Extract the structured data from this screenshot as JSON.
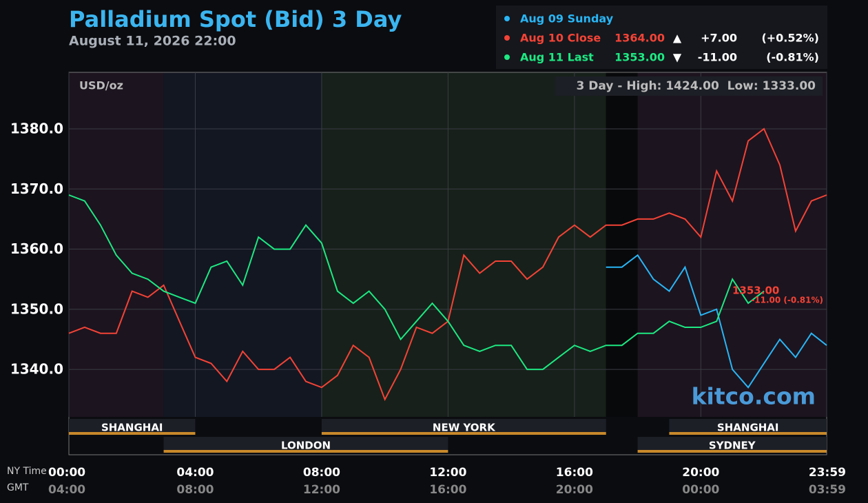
{
  "chart_data": {
    "type": "line",
    "title": "Palladium Spot (Bid) 3 Day",
    "subtitle": "August 11, 2026 22:00",
    "unit_label": "USD/oz",
    "range_note": "3 Day - High: 1424.00  Low: 1333.00",
    "watermark": "kitco.com",
    "last_price": "1353.00",
    "last_change": "-11.00 (-0.81%)",
    "x_label": "NY Time",
    "x2_label": "GMT",
    "x": [
      0,
      0.5,
      1,
      1.5,
      2,
      2.5,
      3,
      3.5,
      4,
      4.5,
      5,
      5.5,
      6,
      6.5,
      7,
      7.5,
      8,
      8.5,
      9,
      9.5,
      10,
      10.5,
      11,
      11.5,
      12,
      12.5,
      13,
      13.5,
      14,
      14.5,
      15,
      15.5,
      16,
      16.5,
      17,
      17.5,
      18,
      18.5,
      19,
      19.5,
      20,
      20.5,
      21,
      21.5,
      22,
      22.5,
      23,
      23.5,
      23.983
    ],
    "xlim": [
      0,
      23.983
    ],
    "xticks": [
      {
        "value": 0,
        "label": "00:00"
      },
      {
        "value": 4,
        "label": "04:00"
      },
      {
        "value": 8,
        "label": "08:00"
      },
      {
        "value": 12,
        "label": "12:00"
      },
      {
        "value": 16,
        "label": "16:00"
      },
      {
        "value": 20,
        "label": "20:00"
      },
      {
        "value": 23.983,
        "label": "23:59"
      }
    ],
    "x2_tick_labels": [
      "04:00",
      "08:00",
      "12:00",
      "16:00",
      "20:00",
      "00:00",
      "03:59"
    ],
    "ylim": [
      1325.8,
      1389.4
    ],
    "yticks": [
      {
        "value": 1340,
        "label": "1340.0"
      },
      {
        "value": 1350,
        "label": "1350.0"
      },
      {
        "value": 1360,
        "label": "1360.0"
      },
      {
        "value": 1370,
        "label": "1370.0"
      },
      {
        "value": 1380,
        "label": "1380.0"
      }
    ],
    "grid": true,
    "sessions": [
      {
        "name": "SHANGHAI",
        "start": 0,
        "end": 4,
        "row": 0
      },
      {
        "name": "NEW YORK",
        "start": 8,
        "end": 17,
        "row": 0
      },
      {
        "name": "SHANGHAI",
        "start": 19,
        "end": 23.983,
        "row": 0
      },
      {
        "name": "LONDON",
        "start": 3,
        "end": 12,
        "row": 1
      },
      {
        "name": "SYDNEY",
        "start": 18,
        "end": 23.983,
        "row": 1
      }
    ],
    "series": [
      {
        "name": "Aug 09 Sunday",
        "color": "#29b6f6",
        "values": [
          null,
          null,
          null,
          null,
          null,
          null,
          null,
          null,
          null,
          null,
          null,
          null,
          null,
          null,
          null,
          null,
          null,
          null,
          null,
          null,
          null,
          null,
          null,
          null,
          null,
          null,
          null,
          null,
          null,
          null,
          null,
          null,
          null,
          null,
          1357,
          1357,
          1359,
          1355,
          1353,
          1357,
          1349,
          1350,
          1340,
          1337,
          1341,
          1345,
          1342,
          1346,
          1344
        ]
      },
      {
        "name": "Aug 10 Close",
        "color": "#f44336",
        "summary": [
          "1364.00",
          "▲",
          "+7.00",
          "(+0.52%)"
        ],
        "values": [
          1346,
          1347,
          1346,
          1346,
          1353,
          1352,
          1354,
          1348,
          1342,
          1341,
          1338,
          1343,
          1340,
          1340,
          1342,
          1338,
          1337,
          1339,
          1344,
          1342,
          1335,
          1340,
          1347,
          1346,
          1348,
          1359,
          1356,
          1358,
          1358,
          1355,
          1357,
          1362,
          1364,
          1362,
          1364,
          1364,
          1365,
          1365,
          1366,
          1365,
          1362,
          1373,
          1368,
          1378,
          1380,
          1374,
          1363,
          1368,
          1369
        ]
      },
      {
        "name": "Aug 11 Last",
        "color": "#1de982",
        "summary": [
          "1353.00",
          "▼",
          "-11.00",
          "(-0.81%)"
        ],
        "values": [
          1369,
          1368,
          1364,
          1359,
          1356,
          1355,
          1353,
          1352,
          1351,
          1357,
          1358,
          1354,
          1362,
          1360,
          1360,
          1364,
          1361,
          1353,
          1351,
          1353,
          1350,
          1345,
          1348,
          1351,
          1348,
          1344,
          1343,
          1344,
          1344,
          1340,
          1340,
          1342,
          1344,
          1343,
          1344,
          1344,
          1346,
          1346,
          1348,
          1347,
          1347,
          1348,
          1355,
          1351,
          1353,
          null,
          null,
          null,
          null
        ]
      }
    ]
  }
}
